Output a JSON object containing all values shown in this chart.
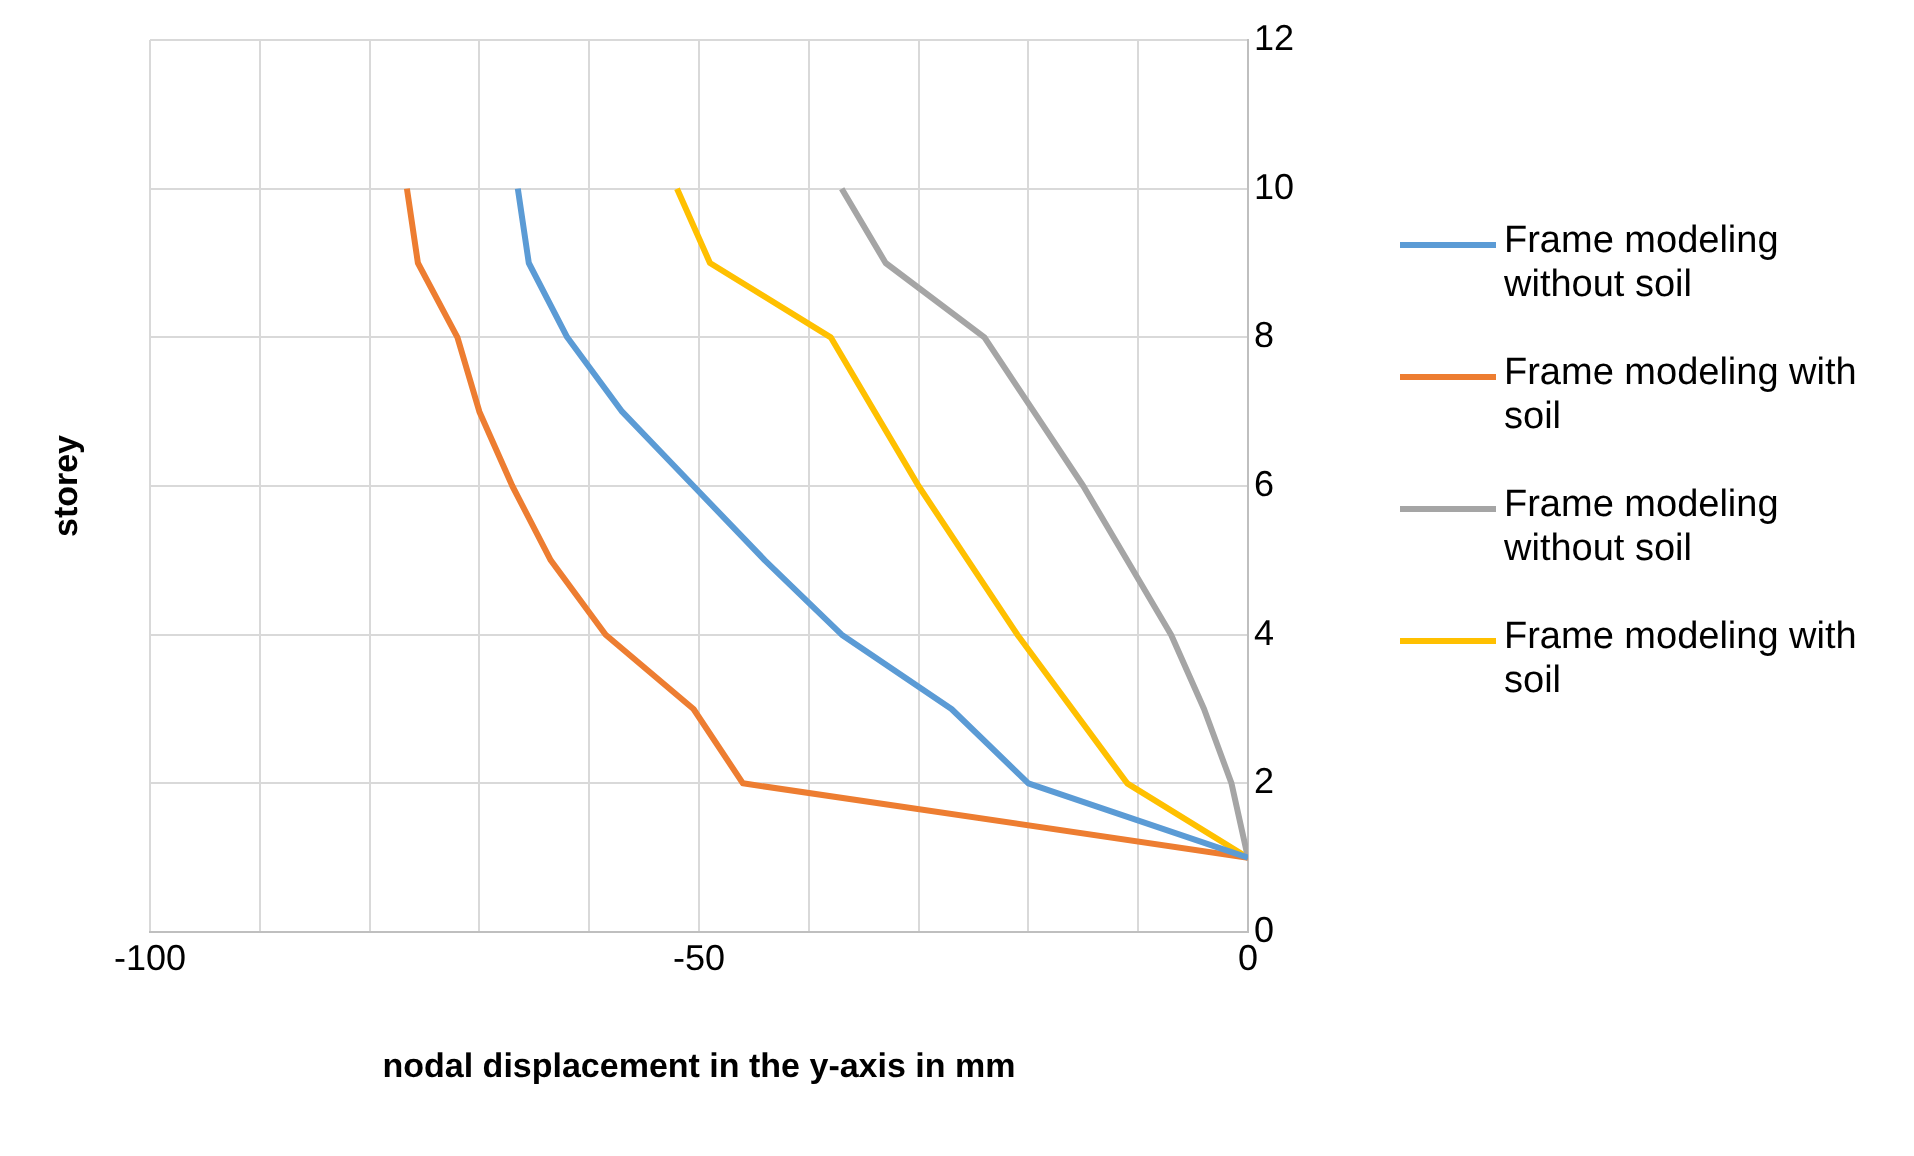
{
  "chart_data": {
    "type": "line",
    "xlabel": "nodal displacement in the y-axis in mm",
    "ylabel": "storey",
    "xlim": [
      -100,
      0
    ],
    "xticks": [
      -100,
      {
        "value": -90,
        "label": null
      },
      {
        "value": -80,
        "label": null
      },
      {
        "value": -70,
        "label": null
      },
      {
        "value": -60,
        "label": null
      },
      -50,
      {
        "value": -40,
        "label": null
      },
      {
        "value": -30,
        "label": null
      },
      {
        "value": -20,
        "label": null
      },
      {
        "value": -10,
        "label": null
      },
      0
    ],
    "ylim": [
      0,
      12
    ],
    "yticks": [
      0,
      2,
      4,
      6,
      8,
      10,
      12
    ],
    "grid": true,
    "legend": "right",
    "line_style": "solid",
    "marker": "none",
    "series": [
      {
        "name": "Frame modeling without soil",
        "color": "#5b9bd5",
        "x": [
          0,
          -20,
          -27,
          -37,
          -44,
          -50.5,
          -57,
          -62,
          -65.5,
          -66.5
        ],
        "values": [
          1,
          2,
          3,
          4,
          5,
          6,
          7,
          8,
          9,
          10
        ]
      },
      {
        "name": "Frame modeling with soil",
        "color": "#ed7d31",
        "x": [
          0,
          -46,
          -50.5,
          -58.5,
          -63.5,
          -67,
          -70,
          -72,
          -75.6,
          -76.6
        ],
        "values": [
          1,
          2,
          3,
          4,
          5,
          6,
          7,
          8,
          9,
          10
        ]
      },
      {
        "name": "Frame modeling without soil",
        "color": "#a5a5a5",
        "x": [
          0,
          -1.5,
          -4,
          -7,
          -11,
          -15,
          -19.5,
          -24,
          -33,
          -37
        ],
        "values": [
          1,
          2,
          3,
          4,
          5,
          6,
          7,
          8,
          9,
          10
        ]
      },
      {
        "name": "Frame modeling with soil",
        "color": "#ffc000",
        "x": [
          0,
          -11,
          -16,
          -21,
          -25.5,
          -30,
          -34,
          -38,
          -49,
          -52
        ],
        "values": [
          1,
          2,
          3,
          4,
          5,
          6,
          7,
          8,
          9,
          10
        ]
      }
    ]
  }
}
